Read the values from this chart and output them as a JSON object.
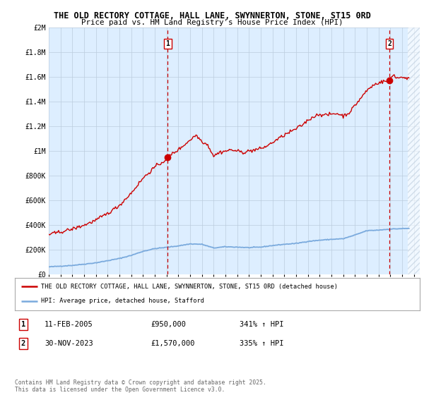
{
  "title_line1": "THE OLD RECTORY COTTAGE, HALL LANE, SWYNNERTON, STONE, ST15 0RD",
  "title_line2": "Price paid vs. HM Land Registry's House Price Index (HPI)",
  "ylabel_ticks": [
    "£0",
    "£200K",
    "£400K",
    "£600K",
    "£800K",
    "£1M",
    "£1.2M",
    "£1.4M",
    "£1.6M",
    "£1.8M",
    "£2M"
  ],
  "ytick_values": [
    0,
    200000,
    400000,
    600000,
    800000,
    1000000,
    1200000,
    1400000,
    1600000,
    1800000,
    2000000
  ],
  "ylim": [
    0,
    2000000
  ],
  "xlim_start": 1995.0,
  "xlim_end": 2026.5,
  "data_end": 2025.5,
  "hpi_line_color": "#7aaadd",
  "price_line_color": "#cc0000",
  "vline_color": "#cc0000",
  "background_color": "#ffffff",
  "chart_bg_color": "#ddeeff",
  "grid_color": "#bbccdd",
  "sale1_x": 2005.1,
  "sale1_y": 950000,
  "sale2_x": 2023.92,
  "sale2_y": 1570000,
  "legend_label1": "THE OLD RECTORY COTTAGE, HALL LANE, SWYNNERTON, STONE, ST15 0RD (detached house)",
  "legend_label2": "HPI: Average price, detached house, Stafford",
  "note1_num": "1",
  "note1_date": "11-FEB-2005",
  "note1_price": "£950,000",
  "note1_hpi": "341% ↑ HPI",
  "note2_num": "2",
  "note2_date": "30-NOV-2023",
  "note2_price": "£1,570,000",
  "note2_hpi": "335% ↑ HPI",
  "copyright": "Contains HM Land Registry data © Crown copyright and database right 2025.\nThis data is licensed under the Open Government Licence v3.0."
}
